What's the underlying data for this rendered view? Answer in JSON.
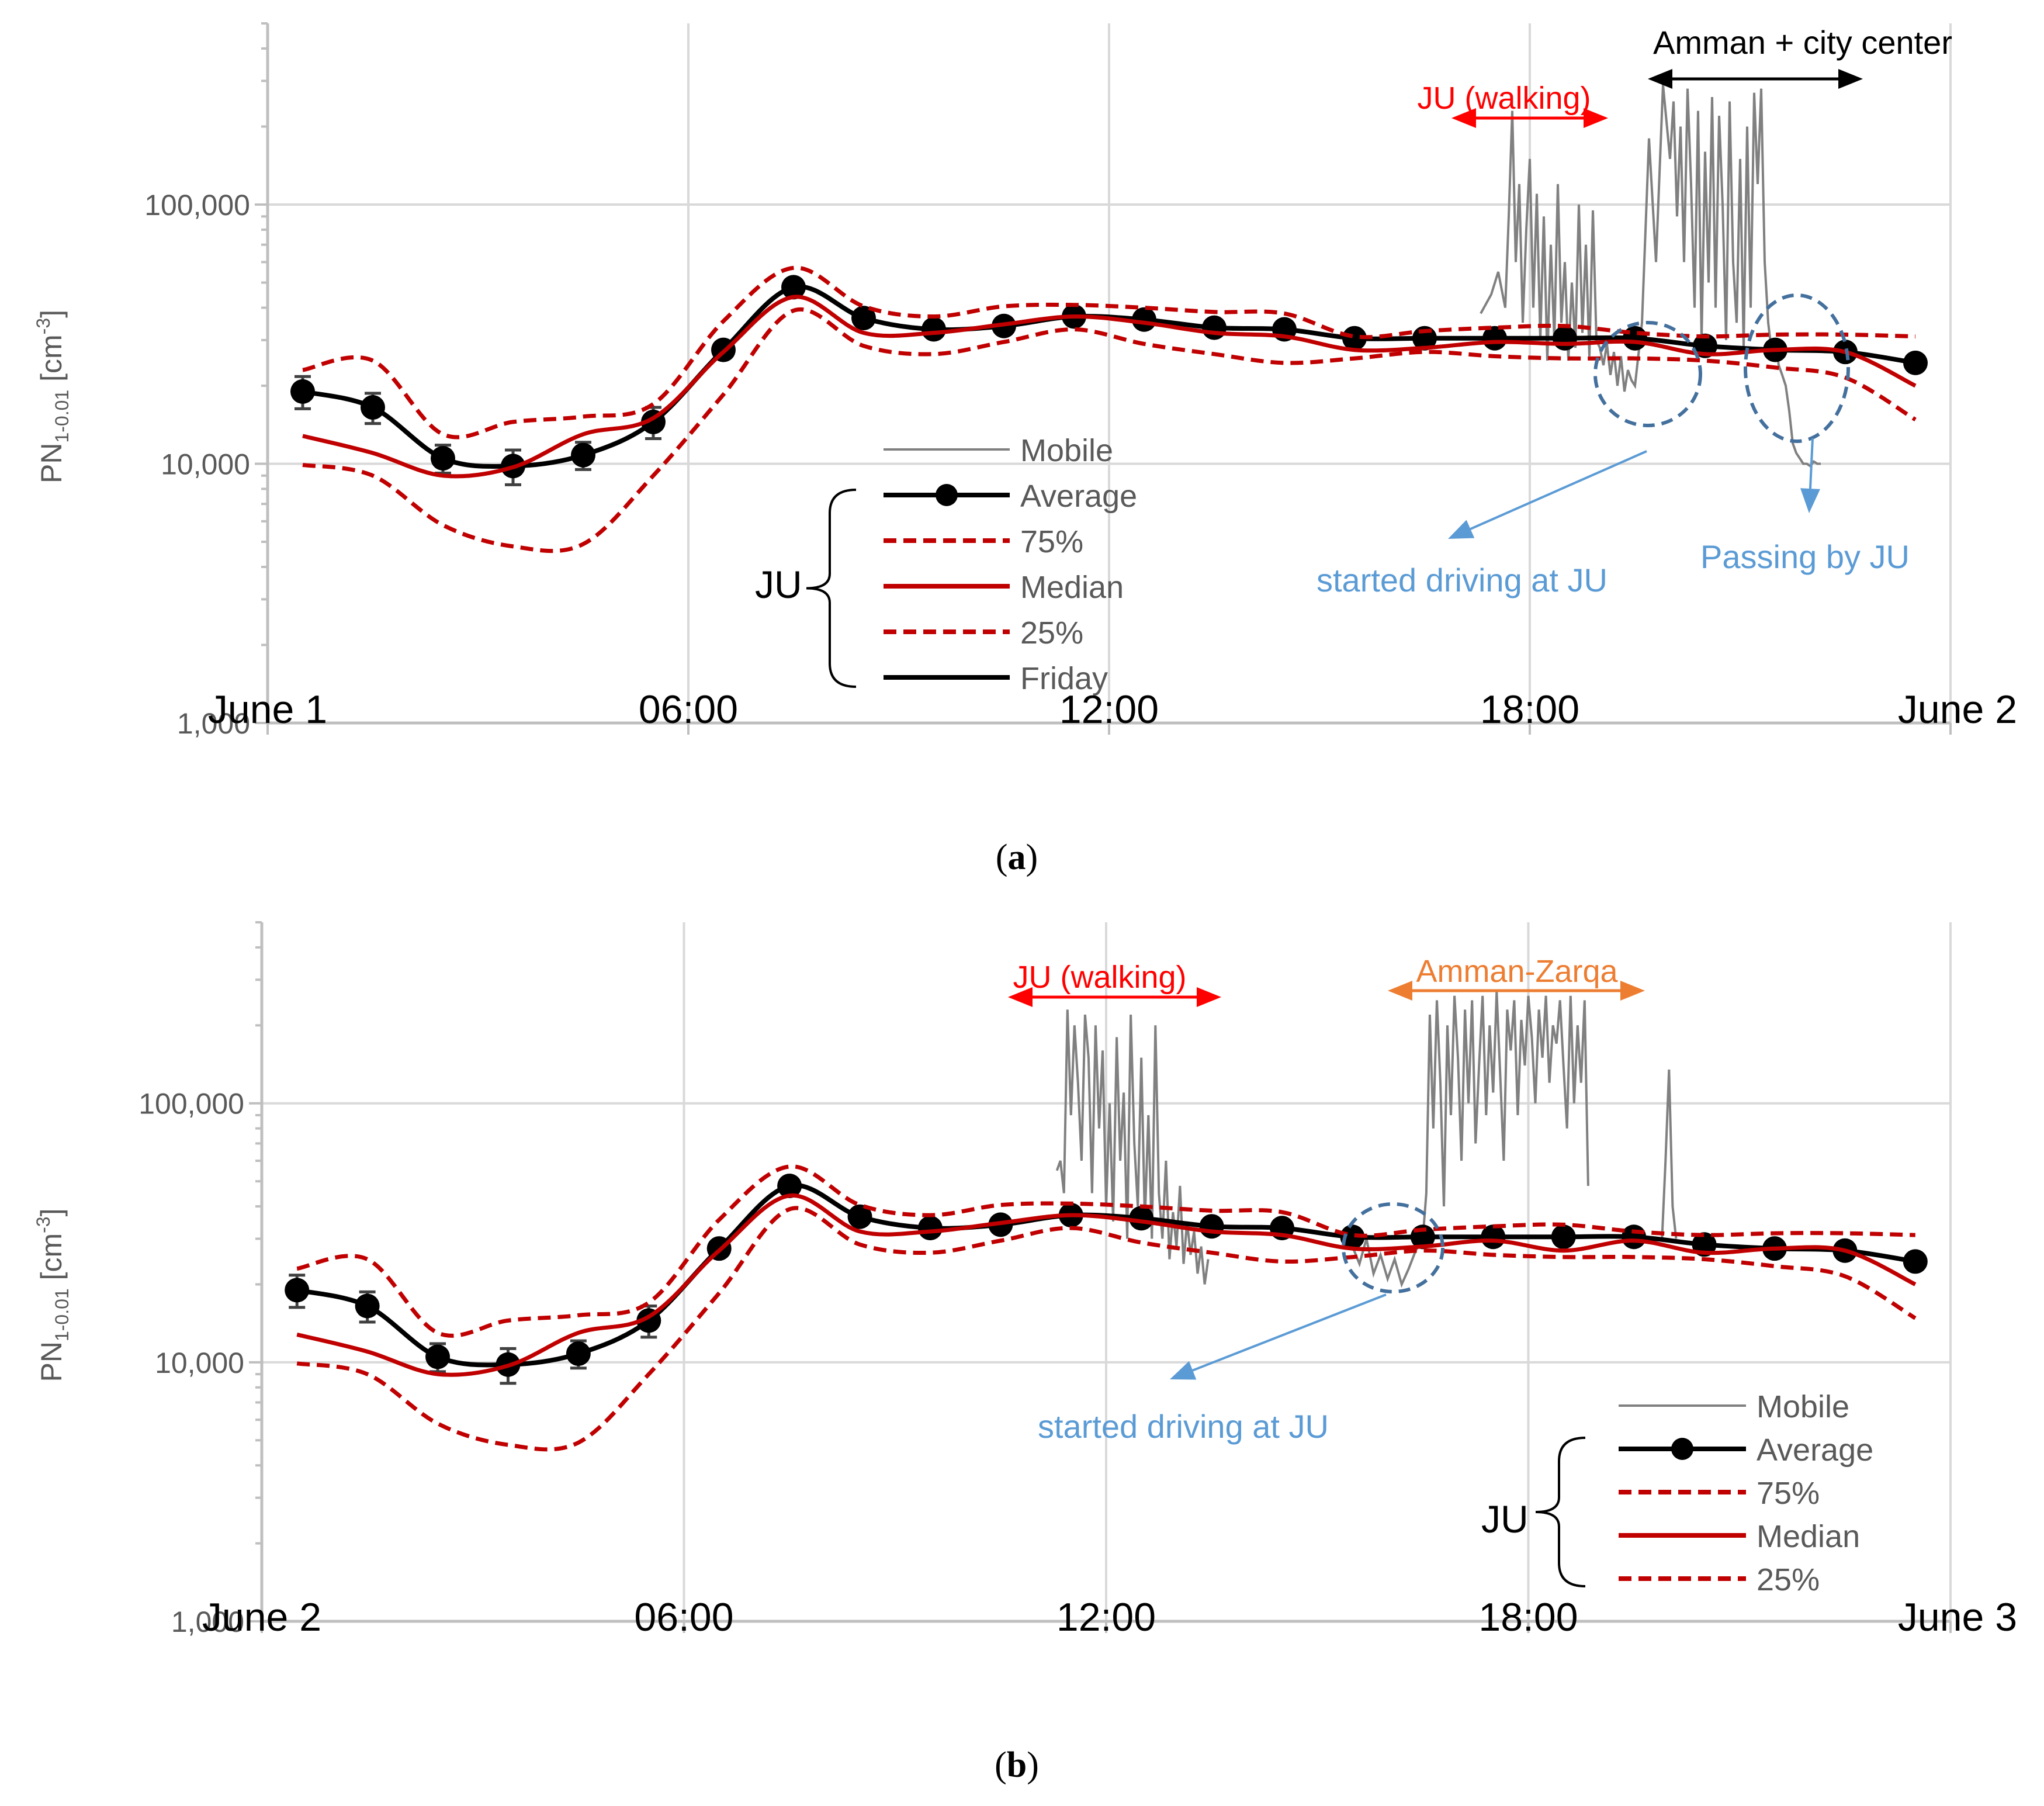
{
  "chart_data": [
    {
      "panel_label": "(a)",
      "type": "line",
      "scale": "log",
      "ylabel": "PN",
      "ylabel_subscript": "1-0.01",
      "ylabel_units": "[cm",
      "ylabel_superscript": "-3",
      "ylabel_close": "]",
      "ylim": [
        1000,
        500000
      ],
      "yticks": [
        {
          "value": 1000,
          "label": "1,000"
        },
        {
          "value": 10000,
          "label": "10,000"
        },
        {
          "value": 100000,
          "label": "100,000"
        }
      ],
      "xlim": [
        0,
        24
      ],
      "xticks": [
        {
          "value": 0,
          "label": "June 1"
        },
        {
          "value": 6,
          "label": "06:00"
        },
        {
          "value": 12,
          "label": "12:00"
        },
        {
          "value": 18,
          "label": "18:00"
        },
        {
          "value": 24,
          "label": "June 2"
        }
      ],
      "hours": [
        0.5,
        1.5,
        2.5,
        3.5,
        4.5,
        5.5,
        6.5,
        7.5,
        8.5,
        9.5,
        10.5,
        11.5,
        12.5,
        13.5,
        14.5,
        15.5,
        16.5,
        17.5,
        18.5,
        19.5,
        20.5,
        21.5,
        22.5,
        23.5
      ],
      "series": [
        {
          "name": "Average",
          "style": "solid-marker",
          "color": "#000000",
          "values": [
            19000,
            16500,
            10500,
            9800,
            10800,
            14500,
            27500,
            48000,
            36500,
            33000,
            34000,
            37000,
            36000,
            33500,
            33000,
            30500,
            30500,
            30500,
            30500,
            30500,
            28500,
            27500,
            27000,
            24500
          ],
          "errors": [
            2700,
            2200,
            1300,
            1500,
            1300,
            2000,
            0,
            0,
            0,
            0,
            0,
            0,
            0,
            0,
            0,
            0,
            0,
            0,
            0,
            0,
            0,
            0,
            0,
            0
          ]
        },
        {
          "name": "75%",
          "style": "dashed",
          "color": "#C00000",
          "values": [
            23000,
            25000,
            13000,
            14500,
            15200,
            17000,
            35500,
            57000,
            40500,
            37000,
            40500,
            41000,
            40000,
            38500,
            38000,
            31000,
            32500,
            33500,
            34000,
            32000,
            31000,
            31500,
            31500,
            31000
          ]
        },
        {
          "name": "Median",
          "style": "solid",
          "color": "#C00000",
          "values": [
            12800,
            11000,
            9000,
            9700,
            13000,
            15000,
            27000,
            44000,
            32000,
            32000,
            34500,
            37000,
            35000,
            32000,
            31000,
            27500,
            28000,
            29500,
            29000,
            29500,
            26500,
            27500,
            27000,
            20000
          ]
        },
        {
          "name": "25%",
          "style": "dashed",
          "color": "#C00000",
          "values": [
            9900,
            9000,
            5800,
            4800,
            4900,
            9000,
            18500,
            39000,
            28500,
            26500,
            29500,
            33000,
            29000,
            26500,
            24500,
            25500,
            27000,
            26000,
            25500,
            25500,
            25000,
            23500,
            21500,
            14800
          ]
        },
        {
          "name": "Friday",
          "style": "solid",
          "color": "#000000",
          "values": []
        }
      ],
      "mobile": {
        "name": "Mobile",
        "color": "#808080",
        "segments": [
          {
            "x": [
              17.3,
              17.45,
              17.55,
              17.65,
              17.7,
              17.75,
              17.8,
              17.85,
              17.9,
              17.95,
              18.0,
              18.05,
              18.1,
              18.15,
              18.2,
              18.25,
              18.3,
              18.35,
              18.4,
              18.45,
              18.5,
              18.55,
              18.6,
              18.65,
              18.7,
              18.75,
              18.8,
              18.85,
              18.9,
              18.95,
              19.0,
              19.05,
              19.1,
              19.15,
              19.2,
              19.25,
              19.3,
              19.35,
              19.4,
              19.45,
              19.5,
              19.6,
              19.7,
              19.8,
              19.9,
              20.0,
              20.05,
              20.1,
              20.15,
              20.2,
              20.25,
              20.3,
              20.35,
              20.4,
              20.45,
              20.5,
              20.55,
              20.6,
              20.65,
              20.7,
              20.75,
              20.8,
              20.85,
              20.9,
              20.95,
              21.0,
              21.05,
              21.1,
              21.15,
              21.2,
              21.25,
              21.3,
              21.35,
              21.4,
              21.45,
              21.5,
              21.55,
              21.6,
              21.65,
              21.7,
              21.75,
              21.8,
              21.85,
              21.9,
              21.95,
              22.0,
              22.05,
              22.1,
              22.15
            ],
            "y": [
              38000,
              45000,
              55000,
              40000,
              90000,
              230000,
              60000,
              120000,
              35000,
              80000,
              150000,
              40000,
              110000,
              30000,
              90000,
              25000,
              70000,
              30000,
              120000,
              35000,
              60000,
              25000,
              50000,
              28000,
              100000,
              32000,
              70000,
              26000,
              95000,
              30000,
              28000,
              24000,
              29000,
              22000,
              27000,
              20000,
              26000,
              19000,
              23000,
              21000,
              20000,
              35000,
              180000,
              60000,
              290000,
              150000,
              250000,
              90000,
              200000,
              60000,
              280000,
              120000,
              40000,
              230000,
              30000,
              160000,
              50000,
              260000,
              40000,
              220000,
              100000,
              30000,
              250000,
              60000,
              35000,
              150000,
              28000,
              200000,
              40000,
              270000,
              120000,
              280000,
              60000,
              35000,
              27000,
              30000,
              24000,
              22000,
              20000,
              16000,
              12000,
              11000,
              10500,
              10000,
              10000,
              9800,
              10200,
              10000,
              10000
            ]
          }
        ]
      },
      "legend": {
        "items": [
          "Mobile",
          "Average",
          "75%",
          "Median",
          "25%",
          "Friday"
        ],
        "group_label": "JU"
      },
      "annotations": {
        "walking": {
          "text": "JU (walking)",
          "color": "#FF0000"
        },
        "amman": {
          "text": "Amman + city center",
          "color": "#000000"
        },
        "started": {
          "text": "started driving at JU",
          "color": "#5B9BD5"
        },
        "passing": {
          "text": "Passing by JU",
          "color": "#5B9BD5"
        }
      }
    },
    {
      "panel_label": "(b)",
      "type": "line",
      "scale": "log",
      "ylabel": "PN",
      "ylabel_subscript": "1-0.01",
      "ylabel_units": "[cm",
      "ylabel_superscript": "-3",
      "ylabel_close": "]",
      "ylim": [
        1000,
        500000
      ],
      "yticks": [
        {
          "value": 1000,
          "label": "1,000"
        },
        {
          "value": 10000,
          "label": "10,000"
        },
        {
          "value": 100000,
          "label": "100,000"
        }
      ],
      "xlim": [
        0,
        24
      ],
      "xticks": [
        {
          "value": 0,
          "label": "June 2"
        },
        {
          "value": 6,
          "label": "06:00"
        },
        {
          "value": 12,
          "label": "12:00"
        },
        {
          "value": 18,
          "label": "18:00"
        },
        {
          "value": 24,
          "label": "June 3"
        }
      ],
      "hours": [
        0.5,
        1.5,
        2.5,
        3.5,
        4.5,
        5.5,
        6.5,
        7.5,
        8.5,
        9.5,
        10.5,
        11.5,
        12.5,
        13.5,
        14.5,
        15.5,
        16.5,
        17.5,
        18.5,
        19.5,
        20.5,
        21.5,
        22.5,
        23.5
      ],
      "series": [
        {
          "name": "Average",
          "style": "solid-marker",
          "color": "#000000",
          "values": [
            19000,
            16500,
            10500,
            9800,
            10800,
            14500,
            27500,
            48000,
            36500,
            33000,
            34000,
            37000,
            36000,
            33500,
            33000,
            30500,
            30500,
            30500,
            30500,
            30500,
            28500,
            27500,
            27000,
            24500
          ],
          "errors": [
            2700,
            2200,
            1300,
            1500,
            1300,
            2000,
            0,
            0,
            0,
            0,
            0,
            0,
            0,
            0,
            0,
            0,
            0,
            0,
            0,
            0,
            0,
            0,
            0,
            0
          ]
        },
        {
          "name": "75%",
          "style": "dashed",
          "color": "#C00000",
          "values": [
            23000,
            25000,
            13000,
            14500,
            15200,
            17000,
            35500,
            57000,
            40500,
            37000,
            40500,
            41000,
            40000,
            38500,
            38000,
            31000,
            32500,
            33500,
            34000,
            32000,
            31000,
            31500,
            31500,
            31000
          ]
        },
        {
          "name": "Median",
          "style": "solid",
          "color": "#C00000",
          "values": [
            12800,
            11000,
            9000,
            9700,
            13000,
            15000,
            27000,
            44000,
            32000,
            32000,
            34500,
            37000,
            35000,
            32000,
            31000,
            27500,
            28000,
            29500,
            27000,
            29500,
            26500,
            27500,
            27000,
            20000
          ]
        },
        {
          "name": "25%",
          "style": "dashed",
          "color": "#C00000",
          "values": [
            9900,
            9000,
            5800,
            4800,
            4900,
            9000,
            18500,
            39000,
            28500,
            26500,
            29500,
            33000,
            29000,
            26500,
            24500,
            25500,
            27000,
            26000,
            25500,
            25500,
            25000,
            23500,
            21500,
            14800
          ]
        }
      ],
      "mobile": {
        "name": "Mobile",
        "color": "#808080",
        "segments": [
          {
            "x": [
              11.3,
              11.35,
              11.4,
              11.45,
              11.5,
              11.55,
              11.6,
              11.65,
              11.7,
              11.75,
              11.8,
              11.85,
              11.9,
              11.95,
              12.0,
              12.05,
              12.1,
              12.15,
              12.2,
              12.25,
              12.3,
              12.35,
              12.4,
              12.45,
              12.5,
              12.55,
              12.6,
              12.65,
              12.7,
              12.75,
              12.8,
              12.85,
              12.9,
              12.95,
              13.0,
              13.05,
              13.1,
              13.15,
              13.2,
              13.25,
              13.3,
              13.35,
              13.4,
              13.45
            ],
            "y": [
              55000,
              60000,
              45000,
              230000,
              90000,
              200000,
              120000,
              60000,
              220000,
              150000,
              45000,
              200000,
              80000,
              160000,
              40000,
              100000,
              35000,
              180000,
              60000,
              110000,
              30000,
              220000,
              70000,
              40000,
              150000,
              35000,
              90000,
              30000,
              200000,
              45000,
              30000,
              60000,
              25000,
              38000,
              28000,
              48000,
              24000,
              35000,
              26000,
              32000,
              22000,
              28000,
              20000,
              25000
            ]
          },
          {
            "x": [
              15.5,
              15.6,
              15.7,
              15.8,
              15.9,
              16.0,
              16.1,
              16.2,
              16.3,
              16.4,
              16.5,
              16.55,
              16.6,
              16.65,
              16.7,
              16.75,
              16.8,
              16.85,
              16.9,
              16.95,
              17.0,
              17.05,
              17.1,
              17.15,
              17.2,
              17.25,
              17.3,
              17.35,
              17.4,
              17.45,
              17.5,
              17.55,
              17.6,
              17.65,
              17.7,
              17.75,
              17.8,
              17.85,
              17.9,
              17.95,
              18.0,
              18.05,
              18.1,
              18.15,
              18.2,
              18.25,
              18.3,
              18.35,
              18.4,
              18.45,
              18.5,
              18.55,
              18.6,
              18.65,
              18.7,
              18.75,
              18.8,
              18.85
            ],
            "y": [
              28000,
              24000,
              30000,
              22000,
              26000,
              21000,
              25000,
              20000,
              23000,
              27000,
              30000,
              45000,
              220000,
              80000,
              250000,
              120000,
              40000,
              200000,
              90000,
              260000,
              150000,
              60000,
              230000,
              100000,
              250000,
              70000,
              140000,
              260000,
              90000,
              200000,
              110000,
              270000,
              130000,
              60000,
              230000,
              160000,
              250000,
              90000,
              210000,
              140000,
              260000,
              180000,
              100000,
              230000,
              150000,
              260000,
              120000,
              200000,
              170000,
              250000,
              140000,
              80000,
              260000,
              100000,
              200000,
              120000,
              250000,
              48000
            ]
          },
          {
            "x": [
              19.9,
              19.95,
              20.0,
              20.05,
              20.1
            ],
            "y": [
              30000,
              60000,
              135000,
              40000,
              30000
            ]
          }
        ]
      },
      "legend": {
        "items": [
          "Mobile",
          "Average",
          "75%",
          "Median",
          "25%"
        ],
        "group_label": "JU"
      },
      "annotations": {
        "walking": {
          "text": "JU (walking)",
          "color": "#FF0000"
        },
        "amman_zarqa": {
          "text": "Amman-Zarqa",
          "color": "#ED7D31"
        },
        "started": {
          "text": "started driving at JU",
          "color": "#5B9BD5"
        }
      }
    }
  ]
}
